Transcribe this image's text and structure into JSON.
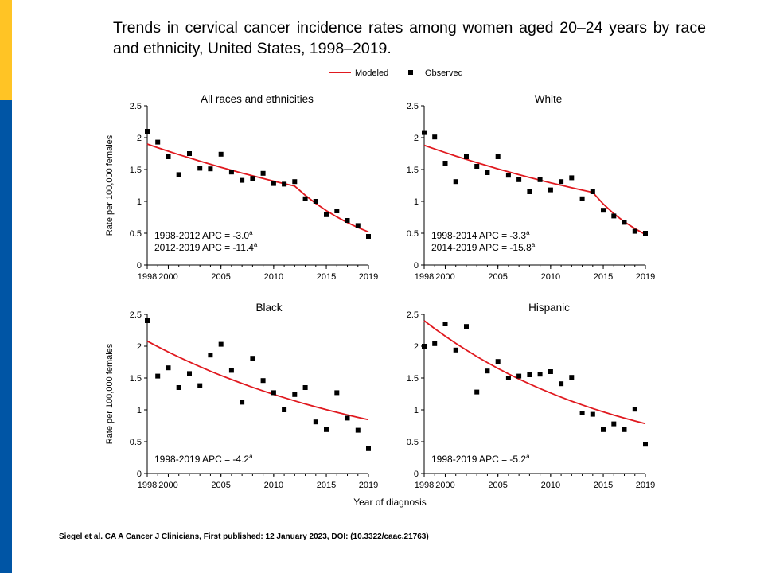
{
  "slide": {
    "title": "Trends in cervical cancer incidence rates among women aged 20–24 years by race and ethnicity, United States, 1998–2019.",
    "citation": "Siegel et al. CA A Cancer J Clinicians, First published: 12 January 2023, DOI: (10.3322/caac.21763)"
  },
  "colors": {
    "accent_yellow": "#FFC425",
    "accent_blue": "#0055A5",
    "modeled_line": "#E0191F",
    "observed_marker": "#000000"
  },
  "legend": {
    "modeled": "Modeled",
    "observed": "Observed"
  },
  "axes": {
    "ylabel": "Rate per 100,000 females",
    "xlabel": "Year of diagnosis",
    "xlim": [
      1998,
      2019
    ],
    "ylim": [
      0,
      2.5
    ],
    "x_ticks": [
      1998,
      2000,
      2005,
      2010,
      2015,
      2019
    ],
    "y_ticks": [
      0,
      0.5,
      1,
      1.5,
      2,
      2.5
    ],
    "x_tick_labels": [
      "1998",
      "2000",
      "2005",
      "2010",
      "2015",
      "2019"
    ],
    "y_tick_labels": [
      "0",
      "0.5",
      "1",
      "1.5",
      "2",
      "2.5"
    ]
  },
  "chart_data": [
    {
      "type": "scatter+line",
      "title": "All races and ethnicities",
      "apc": [
        [
          "1998-2012 APC = -3.0",
          "a"
        ],
        [
          "2012-2019 APC = -11.4",
          "a"
        ]
      ],
      "observed": {
        "x": [
          1998,
          1999,
          2000,
          2001,
          2002,
          2003,
          2004,
          2005,
          2006,
          2007,
          2008,
          2009,
          2010,
          2011,
          2012,
          2013,
          2014,
          2015,
          2016,
          2017,
          2018,
          2019
        ],
        "y": [
          2.1,
          1.93,
          1.7,
          1.42,
          1.75,
          1.52,
          1.51,
          1.74,
          1.46,
          1.33,
          1.36,
          1.44,
          1.28,
          1.27,
          1.31,
          1.04,
          1.0,
          0.79,
          0.85,
          0.7,
          0.62,
          0.45
        ]
      },
      "modeled": {
        "x": [
          1998,
          2012,
          2019
        ],
        "y": [
          1.9,
          1.24,
          0.52
        ]
      }
    },
    {
      "type": "scatter+line",
      "title": "White",
      "apc": [
        [
          "1998-2014 APC = -3.3",
          "a"
        ],
        [
          "2014-2019 APC = -15.8",
          "a"
        ]
      ],
      "observed": {
        "x": [
          1998,
          1999,
          2000,
          2001,
          2002,
          2003,
          2004,
          2005,
          2006,
          2007,
          2008,
          2009,
          2010,
          2011,
          2012,
          2013,
          2014,
          2015,
          2016,
          2017,
          2018,
          2019
        ],
        "y": [
          2.08,
          2.01,
          1.6,
          1.31,
          1.7,
          1.55,
          1.45,
          1.7,
          1.41,
          1.34,
          1.15,
          1.34,
          1.18,
          1.31,
          1.37,
          1.04,
          1.15,
          0.86,
          0.77,
          0.67,
          0.53,
          0.5
        ]
      },
      "modeled": {
        "x": [
          1998,
          2014,
          2019
        ],
        "y": [
          1.88,
          1.14,
          0.48
        ]
      }
    },
    {
      "type": "scatter+line",
      "title": "Black",
      "apc": [
        [
          "1998-2019 APC = -4.2",
          "a"
        ]
      ],
      "observed": {
        "x": [
          1998,
          1999,
          2000,
          2001,
          2002,
          2003,
          2004,
          2005,
          2006,
          2007,
          2008,
          2009,
          2010,
          2011,
          2012,
          2013,
          2014,
          2015,
          2016,
          2017,
          2018,
          2019
        ],
        "y": [
          2.4,
          1.53,
          1.66,
          1.35,
          1.57,
          1.38,
          1.86,
          2.03,
          1.62,
          1.12,
          1.81,
          1.46,
          1.27,
          1.0,
          1.24,
          1.35,
          0.81,
          0.69,
          1.27,
          0.87,
          0.68,
          0.39
        ]
      },
      "modeled": {
        "x": [
          1998,
          2019
        ],
        "y": [
          2.08,
          0.83
        ],
        "apc": -4.2
      }
    },
    {
      "type": "scatter+line",
      "title": "Hispanic",
      "apc": [
        [
          "1998-2019 APC = -5.2",
          "a"
        ]
      ],
      "observed": {
        "x": [
          1998,
          1999,
          2000,
          2001,
          2002,
          2003,
          2004,
          2005,
          2006,
          2007,
          2008,
          2009,
          2010,
          2011,
          2012,
          2013,
          2014,
          2015,
          2016,
          2017,
          2018,
          2019
        ],
        "y": [
          2.0,
          2.04,
          2.35,
          1.94,
          2.31,
          1.28,
          1.61,
          1.76,
          1.5,
          1.53,
          1.55,
          1.56,
          1.6,
          1.41,
          1.51,
          0.95,
          0.93,
          0.69,
          0.78,
          0.69,
          1.01,
          0.46
        ]
      },
      "modeled": {
        "x": [
          1998,
          2019
        ],
        "y": [
          2.4,
          0.79
        ],
        "apc": -5.2
      }
    }
  ]
}
